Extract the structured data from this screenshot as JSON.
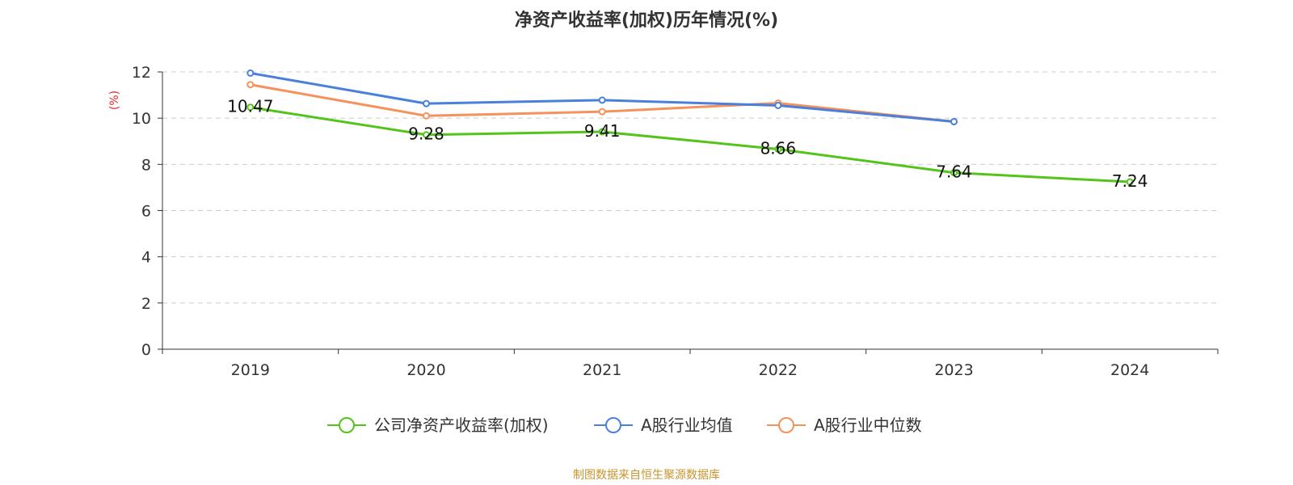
{
  "chart_data": {
    "type": "line",
    "title": "净资产收益率(加权)历年情况(%)",
    "ylabel": "(%)",
    "categories": [
      "2019",
      "2020",
      "2021",
      "2022",
      "2023",
      "2024"
    ],
    "ylim": [
      0,
      12
    ],
    "yticks": [
      0,
      2,
      4,
      6,
      8,
      10,
      12
    ],
    "grid": true,
    "legend_position": "bottom",
    "series": [
      {
        "name": "公司净资产收益率(加权)",
        "color": "#52c41a",
        "values": [
          10.47,
          9.28,
          9.41,
          8.66,
          7.64,
          7.24
        ],
        "labels": [
          "10.47",
          "9.28",
          "9.41",
          "8.66",
          "7.64",
          "7.24"
        ]
      },
      {
        "name": "A股行业均值",
        "color": "#4a7fdc",
        "values": [
          11.95,
          10.63,
          10.78,
          10.55,
          9.85,
          null
        ]
      },
      {
        "name": "A股行业中位数",
        "color": "#f5915a",
        "values": [
          11.45,
          10.1,
          10.28,
          10.65,
          9.85,
          null
        ]
      }
    ],
    "source": "制图数据来自恒生聚源数据库"
  }
}
